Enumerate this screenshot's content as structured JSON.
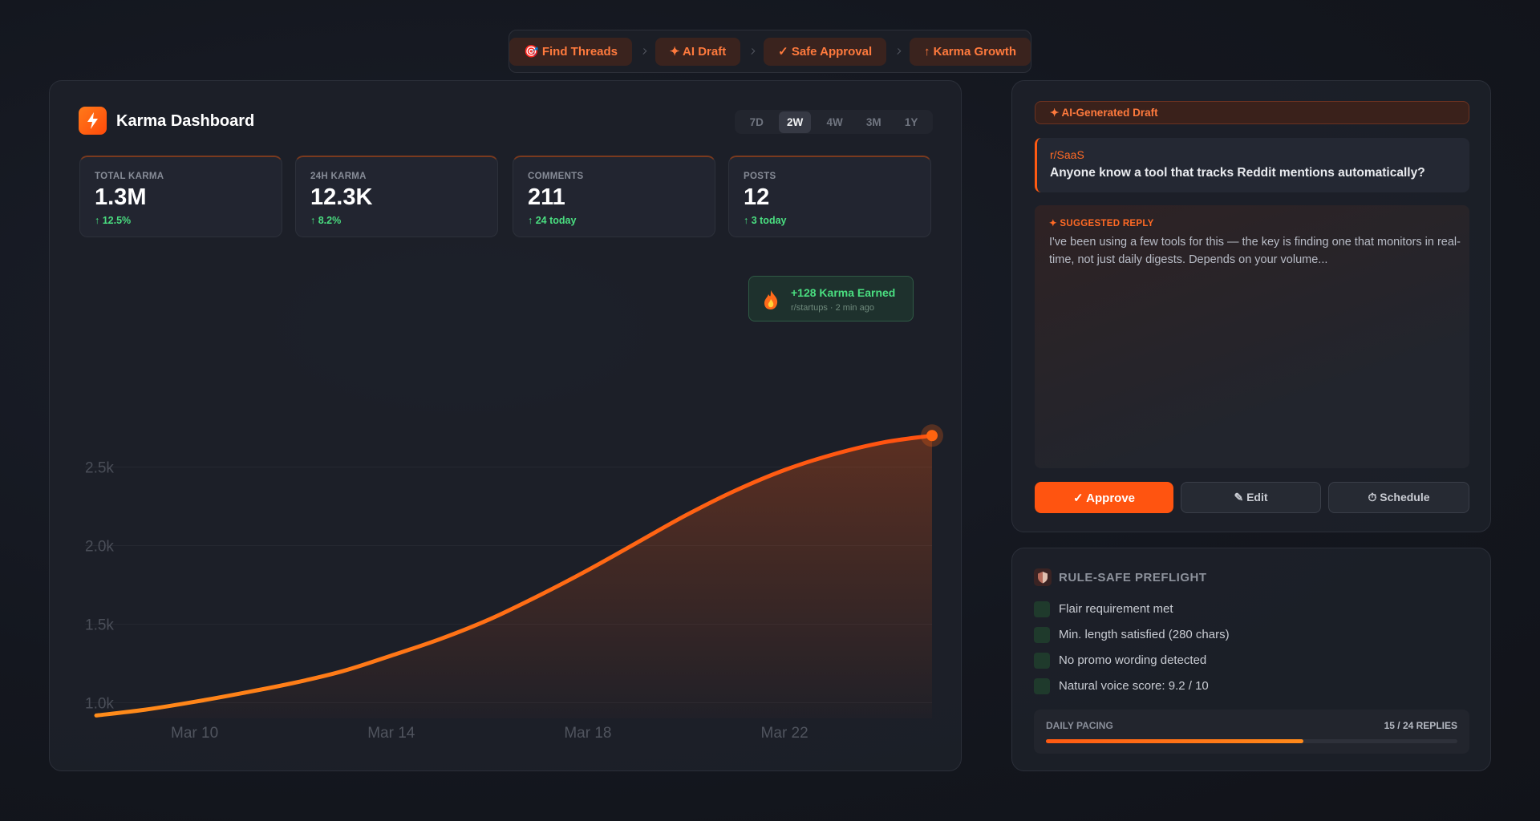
{
  "nav": {
    "steps": [
      "🎯 Find Threads",
      "✦ AI Draft",
      "✓ Safe Approval",
      "↑ Karma Growth"
    ]
  },
  "dashboard": {
    "title": "Karma Dashboard",
    "ranges": [
      "7D",
      "2W",
      "4W",
      "3M",
      "1Y"
    ],
    "active_range": 1,
    "stats": [
      {
        "label": "TOTAL KARMA",
        "value": "1.3M",
        "change": "↑ 12.5%"
      },
      {
        "label": "24H KARMA",
        "value": "12.3K",
        "change": "↑ 8.2%"
      },
      {
        "label": "COMMENTS",
        "value": "211",
        "change": "↑ 24 today"
      },
      {
        "label": "POSTS",
        "value": "12",
        "change": "↑ 3 today"
      }
    ],
    "toast": {
      "title": "+128 Karma Earned",
      "subtitle": "r/startups · 2 min ago"
    }
  },
  "chart_data": {
    "type": "line",
    "categories": [
      null,
      null,
      "Mar 10",
      null,
      null,
      null,
      "Mar 14",
      null,
      null,
      null,
      "Mar 18",
      null,
      null,
      null,
      "Mar 22",
      null,
      null,
      null
    ],
    "values": [
      919,
      956,
      1006,
      1063,
      1125,
      1200,
      1300,
      1406,
      1531,
      1681,
      1844,
      2019,
      2194,
      2350,
      2481,
      2581,
      2656,
      2700
    ],
    "color": "#ff6410",
    "ylim": [
      900,
      3800
    ],
    "yticks": [
      {
        "value": 1000,
        "label": "1.0k"
      },
      {
        "value": 1500,
        "label": "1.5k"
      },
      {
        "value": 2000,
        "label": "2.0k"
      },
      {
        "value": 2500,
        "label": "2.5k"
      }
    ],
    "grid": true
  },
  "draft": {
    "badge": "✦ AI-Generated Draft",
    "subreddit": "r/SaaS",
    "question": "Anyone know a tool that tracks Reddit mentions automatically?",
    "reply_heading": "✦ SUGGESTED REPLY",
    "reply": "I've been using a few tools for this — the key is finding one that monitors in real-time, not just daily digests. Depends on your volume...",
    "actions": [
      "✓ Approve",
      "✎ Edit",
      "⏱ Schedule"
    ]
  },
  "preflight": {
    "title": "RULE-SAFE PREFLIGHT",
    "checks": [
      "Flair requirement met",
      "Min. length satisfied (280 chars)",
      "No promo wording detected",
      "Natural voice score: 9.2 / 10"
    ],
    "pacing": {
      "label": "DAILY PACING",
      "count_label": "15 / 24 REPLIES",
      "done": 15,
      "total": 24
    }
  }
}
